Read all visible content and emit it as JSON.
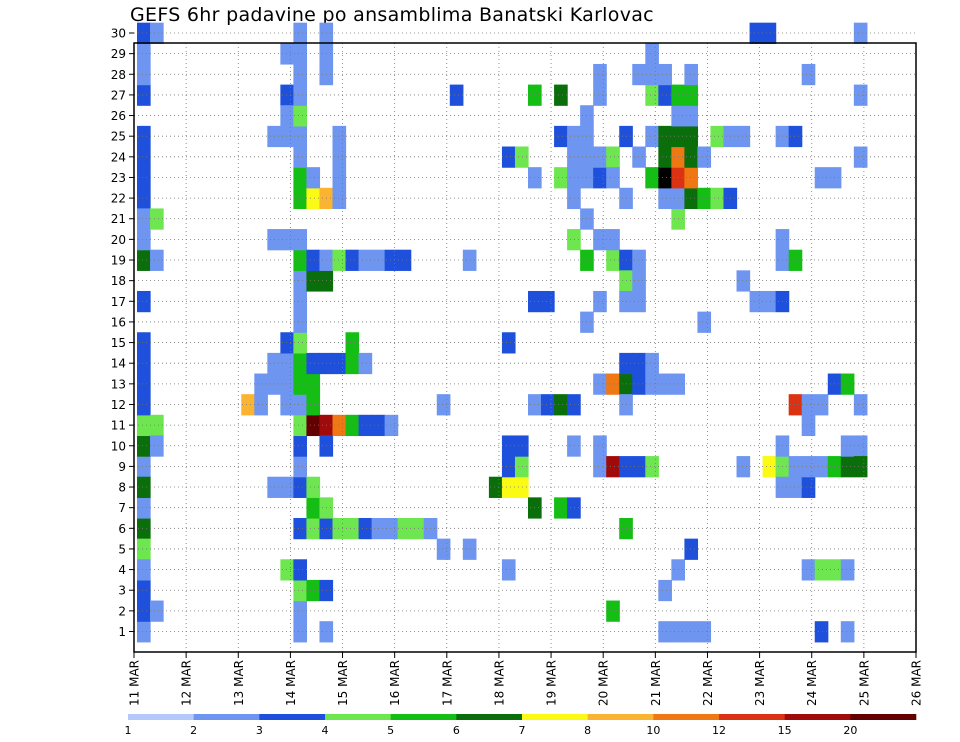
{
  "chart_data": {
    "type": "heatmap",
    "title": "GEFS 6hr padavine po ansamblima Banatski Karlovac",
    "y_values": [
      "1",
      "2",
      "3",
      "4",
      "5",
      "6",
      "7",
      "8",
      "9",
      "10",
      "11",
      "12",
      "13",
      "14",
      "15",
      "16",
      "17",
      "18",
      "19",
      "20",
      "21",
      "22",
      "23",
      "24",
      "25",
      "26",
      "27",
      "28",
      "29",
      "30"
    ],
    "x_tick_labels": [
      "11 MAR",
      "12 MAR",
      "13 MAR",
      "14 MAR",
      "15 MAR",
      "16 MAR",
      "17 MAR",
      "18 MAR",
      "19 MAR",
      "20 MAR",
      "21 MAR",
      "22 MAR",
      "23 MAR",
      "24 MAR",
      "25 MAR",
      "26 MAR"
    ],
    "x_step_hours": 6,
    "legend": {
      "labels": [
        "1",
        "2",
        "3",
        "4",
        "5",
        "6",
        "7",
        "8",
        "10",
        "12",
        "15",
        "20"
      ],
      "colors": [
        "#b4c8fa",
        "#6e96f0",
        "#1e50dc",
        "#6ee650",
        "#14be14",
        "#0a6e0a",
        "#fafa14",
        "#fab432",
        "#f07814",
        "#dc3214",
        "#a00a0a",
        "#640000"
      ]
    },
    "grid": true,
    "cells": [
      [
        0,
        0,
        1
      ],
      [
        0,
        8,
        1
      ],
      [
        0,
        9,
        5
      ],
      [
        0,
        10,
        3
      ],
      [
        0,
        11,
        2
      ],
      [
        0,
        12,
        2
      ],
      [
        0,
        13,
        2
      ],
      [
        0,
        14,
        2
      ],
      [
        0,
        16,
        2
      ],
      [
        0,
        18,
        5
      ],
      [
        0,
        21,
        2
      ],
      [
        0,
        22,
        2
      ],
      [
        0,
        23,
        2
      ],
      [
        0,
        24,
        2
      ],
      [
        0,
        26,
        2
      ],
      [
        0,
        27,
        1
      ],
      [
        0,
        28,
        1
      ],
      [
        0,
        29,
        2
      ],
      [
        0,
        5,
        5
      ],
      [
        0,
        4,
        3
      ],
      [
        0,
        2,
        2
      ],
      [
        0,
        1,
        2
      ],
      [
        0,
        19,
        1
      ],
      [
        0,
        20,
        1
      ],
      [
        0,
        6,
        1
      ],
      [
        0,
        7,
        5
      ],
      [
        0,
        3,
        1
      ],
      [
        1,
        10,
        3
      ],
      [
        1,
        9,
        1
      ],
      [
        1,
        20,
        3
      ],
      [
        1,
        18,
        1
      ],
      [
        1,
        29,
        1
      ],
      [
        1,
        1,
        1
      ],
      [
        8,
        11,
        7
      ],
      [
        9,
        11,
        1
      ],
      [
        9,
        12,
        1
      ],
      [
        10,
        7,
        1
      ],
      [
        10,
        12,
        1
      ],
      [
        10,
        13,
        1
      ],
      [
        10,
        19,
        1
      ],
      [
        10,
        24,
        1
      ],
      [
        11,
        3,
        3
      ],
      [
        11,
        7,
        1
      ],
      [
        11,
        11,
        1
      ],
      [
        11,
        12,
        1
      ],
      [
        11,
        13,
        1
      ],
      [
        11,
        14,
        2
      ],
      [
        11,
        19,
        1
      ],
      [
        11,
        26,
        2
      ],
      [
        11,
        24,
        1
      ],
      [
        11,
        25,
        1
      ],
      [
        11,
        28,
        1
      ],
      [
        12,
        0,
        1
      ],
      [
        12,
        1,
        1
      ],
      [
        12,
        2,
        3
      ],
      [
        12,
        3,
        2
      ],
      [
        12,
        5,
        2
      ],
      [
        12,
        7,
        2
      ],
      [
        12,
        8,
        1
      ],
      [
        12,
        9,
        2
      ],
      [
        12,
        10,
        3
      ],
      [
        12,
        11,
        1
      ],
      [
        12,
        12,
        4
      ],
      [
        12,
        13,
        4
      ],
      [
        12,
        14,
        3
      ],
      [
        12,
        15,
        1
      ],
      [
        12,
        16,
        1
      ],
      [
        12,
        17,
        1
      ],
      [
        12,
        18,
        4
      ],
      [
        12,
        19,
        1
      ],
      [
        12,
        21,
        4
      ],
      [
        12,
        22,
        4
      ],
      [
        12,
        23,
        1
      ],
      [
        12,
        24,
        1
      ],
      [
        12,
        25,
        3
      ],
      [
        12,
        26,
        1
      ],
      [
        12,
        27,
        1
      ],
      [
        12,
        28,
        1
      ],
      [
        12,
        29,
        1
      ],
      [
        13,
        2,
        4
      ],
      [
        13,
        5,
        3
      ],
      [
        13,
        6,
        4
      ],
      [
        13,
        7,
        3
      ],
      [
        13,
        10,
        11
      ],
      [
        13,
        11,
        4
      ],
      [
        13,
        12,
        4
      ],
      [
        13,
        13,
        2
      ],
      [
        13,
        17,
        5
      ],
      [
        13,
        18,
        2
      ],
      [
        13,
        21,
        6
      ],
      [
        13,
        22,
        1
      ],
      [
        14,
        0,
        1
      ],
      [
        14,
        2,
        2
      ],
      [
        14,
        5,
        2
      ],
      [
        14,
        6,
        3
      ],
      [
        14,
        10,
        10
      ],
      [
        14,
        17,
        5
      ],
      [
        14,
        18,
        1
      ],
      [
        14,
        21,
        7
      ],
      [
        14,
        13,
        2
      ],
      [
        14,
        9,
        2
      ],
      [
        14,
        27,
        1
      ],
      [
        14,
        28,
        1
      ],
      [
        14,
        29,
        1
      ],
      [
        15,
        5,
        3
      ],
      [
        15,
        10,
        8
      ],
      [
        15,
        13,
        2
      ],
      [
        15,
        18,
        3
      ],
      [
        15,
        22,
        1
      ],
      [
        15,
        23,
        1
      ],
      [
        15,
        24,
        1
      ],
      [
        15,
        21,
        1
      ],
      [
        16,
        5,
        3
      ],
      [
        16,
        10,
        4
      ],
      [
        16,
        13,
        4
      ],
      [
        16,
        18,
        2
      ],
      [
        16,
        14,
        4
      ],
      [
        17,
        5,
        2
      ],
      [
        17,
        10,
        2
      ],
      [
        17,
        13,
        1
      ],
      [
        17,
        18,
        1
      ],
      [
        18,
        5,
        1
      ],
      [
        18,
        10,
        2
      ],
      [
        18,
        18,
        1
      ],
      [
        19,
        5,
        1
      ],
      [
        19,
        18,
        2
      ],
      [
        19,
        10,
        1
      ],
      [
        20,
        5,
        3
      ],
      [
        20,
        18,
        2
      ],
      [
        21,
        5,
        3
      ],
      [
        22,
        5,
        1
      ],
      [
        23,
        4,
        1
      ],
      [
        23,
        11,
        1
      ],
      [
        24,
        26,
        2
      ],
      [
        25,
        18,
        1
      ],
      [
        25,
        4,
        1
      ],
      [
        27,
        7,
        5
      ],
      [
        28,
        7,
        6
      ],
      [
        28,
        8,
        2
      ],
      [
        28,
        9,
        2
      ],
      [
        28,
        3,
        1
      ],
      [
        28,
        14,
        2
      ],
      [
        28,
        23,
        2
      ],
      [
        29,
        7,
        6
      ],
      [
        29,
        8,
        3
      ],
      [
        29,
        9,
        2
      ],
      [
        29,
        23,
        3
      ],
      [
        30,
        6,
        5
      ],
      [
        30,
        26,
        4
      ],
      [
        30,
        11,
        1
      ],
      [
        30,
        16,
        2
      ],
      [
        30,
        22,
        1
      ],
      [
        31,
        11,
        2
      ],
      [
        31,
        16,
        2
      ],
      [
        32,
        6,
        4
      ],
      [
        32,
        11,
        5
      ],
      [
        32,
        22,
        3
      ],
      [
        32,
        24,
        2
      ],
      [
        32,
        26,
        5
      ],
      [
        33,
        6,
        2
      ],
      [
        33,
        11,
        2
      ],
      [
        33,
        19,
        3
      ],
      [
        33,
        9,
        1
      ],
      [
        33,
        21,
        1
      ],
      [
        33,
        22,
        1
      ],
      [
        33,
        24,
        1
      ],
      [
        33,
        23,
        1
      ],
      [
        34,
        25,
        1
      ],
      [
        34,
        18,
        4
      ],
      [
        34,
        20,
        1
      ],
      [
        34,
        22,
        1
      ],
      [
        34,
        23,
        1
      ],
      [
        34,
        24,
        1
      ],
      [
        34,
        15,
        1
      ],
      [
        35,
        9,
        1
      ],
      [
        35,
        8,
        1
      ],
      [
        35,
        12,
        1
      ],
      [
        35,
        16,
        1
      ],
      [
        35,
        19,
        1
      ],
      [
        35,
        22,
        2
      ],
      [
        35,
        23,
        1
      ],
      [
        35,
        26,
        1
      ],
      [
        35,
        27,
        1
      ],
      [
        36,
        1,
        4
      ],
      [
        36,
        8,
        10
      ],
      [
        36,
        12,
        8
      ],
      [
        36,
        18,
        3
      ],
      [
        36,
        19,
        1
      ],
      [
        36,
        23,
        3
      ],
      [
        36,
        22,
        1
      ],
      [
        37,
        5,
        4
      ],
      [
        37,
        8,
        2
      ],
      [
        37,
        12,
        5
      ],
      [
        37,
        13,
        2
      ],
      [
        37,
        18,
        2
      ],
      [
        37,
        17,
        3
      ],
      [
        37,
        16,
        1
      ],
      [
        37,
        11,
        1
      ],
      [
        37,
        24,
        2
      ],
      [
        37,
        21,
        1
      ],
      [
        38,
        8,
        2
      ],
      [
        38,
        12,
        2
      ],
      [
        38,
        13,
        2
      ],
      [
        38,
        16,
        1
      ],
      [
        38,
        18,
        1
      ],
      [
        38,
        17,
        1
      ],
      [
        38,
        23,
        1
      ],
      [
        38,
        27,
        1
      ],
      [
        39,
        8,
        3
      ],
      [
        39,
        12,
        1
      ],
      [
        39,
        13,
        1
      ],
      [
        39,
        22,
        4
      ],
      [
        39,
        26,
        3
      ],
      [
        39,
        24,
        1
      ],
      [
        39,
        27,
        1
      ],
      [
        39,
        28,
        1
      ],
      [
        40,
        0,
        1
      ],
      [
        40,
        2,
        1
      ],
      [
        40,
        12,
        1
      ],
      [
        40,
        21,
        1
      ],
      [
        40,
        22,
        12
      ],
      [
        40,
        23,
        5
      ],
      [
        40,
        24,
        5
      ],
      [
        40,
        26,
        2
      ],
      [
        40,
        27,
        1
      ],
      [
        41,
        0,
        1
      ],
      [
        41,
        3,
        1
      ],
      [
        41,
        12,
        1
      ],
      [
        41,
        20,
        3
      ],
      [
        41,
        21,
        1
      ],
      [
        41,
        22,
        9
      ],
      [
        41,
        23,
        8
      ],
      [
        41,
        24,
        5
      ],
      [
        41,
        25,
        1
      ],
      [
        41,
        26,
        4
      ],
      [
        42,
        0,
        1
      ],
      [
        42,
        4,
        2
      ],
      [
        42,
        21,
        5
      ],
      [
        42,
        22,
        8
      ],
      [
        42,
        23,
        5
      ],
      [
        42,
        24,
        5
      ],
      [
        42,
        25,
        1
      ],
      [
        42,
        26,
        4
      ],
      [
        42,
        27,
        1
      ],
      [
        43,
        0,
        1
      ],
      [
        43,
        15,
        1
      ],
      [
        43,
        21,
        4
      ],
      [
        43,
        23,
        1
      ],
      [
        44,
        21,
        3
      ],
      [
        44,
        24,
        3
      ],
      [
        45,
        21,
        2
      ],
      [
        45,
        24,
        1
      ],
      [
        46,
        8,
        1
      ],
      [
        46,
        24,
        1
      ],
      [
        46,
        17,
        1
      ],
      [
        47,
        29,
        2
      ],
      [
        47,
        16,
        1
      ],
      [
        48,
        16,
        1
      ],
      [
        48,
        29,
        2
      ],
      [
        48,
        8,
        6
      ],
      [
        49,
        16,
        2
      ],
      [
        49,
        24,
        1
      ],
      [
        49,
        18,
        1
      ],
      [
        49,
        19,
        1
      ],
      [
        49,
        8,
        3
      ],
      [
        49,
        9,
        1
      ],
      [
        49,
        7,
        1
      ],
      [
        50,
        18,
        4
      ],
      [
        50,
        7,
        1
      ],
      [
        50,
        11,
        9
      ],
      [
        50,
        24,
        2
      ],
      [
        50,
        8,
        1
      ],
      [
        51,
        11,
        1
      ],
      [
        51,
        3,
        1
      ],
      [
        51,
        7,
        2
      ],
      [
        51,
        8,
        1
      ],
      [
        51,
        10,
        1
      ],
      [
        51,
        27,
        1
      ],
      [
        52,
        0,
        2
      ],
      [
        52,
        11,
        1
      ],
      [
        52,
        8,
        1
      ],
      [
        52,
        22,
        1
      ],
      [
        52,
        3,
        3
      ],
      [
        53,
        3,
        3
      ],
      [
        53,
        8,
        4
      ],
      [
        53,
        12,
        2
      ],
      [
        53,
        22,
        1
      ],
      [
        54,
        3,
        1
      ],
      [
        54,
        8,
        5
      ],
      [
        54,
        12,
        4
      ],
      [
        54,
        0,
        1
      ],
      [
        54,
        9,
        1
      ],
      [
        55,
        9,
        1
      ],
      [
        55,
        8,
        5
      ],
      [
        55,
        11,
        1
      ],
      [
        55,
        23,
        1
      ],
      [
        55,
        26,
        1
      ],
      [
        55,
        29,
        1
      ]
    ]
  }
}
